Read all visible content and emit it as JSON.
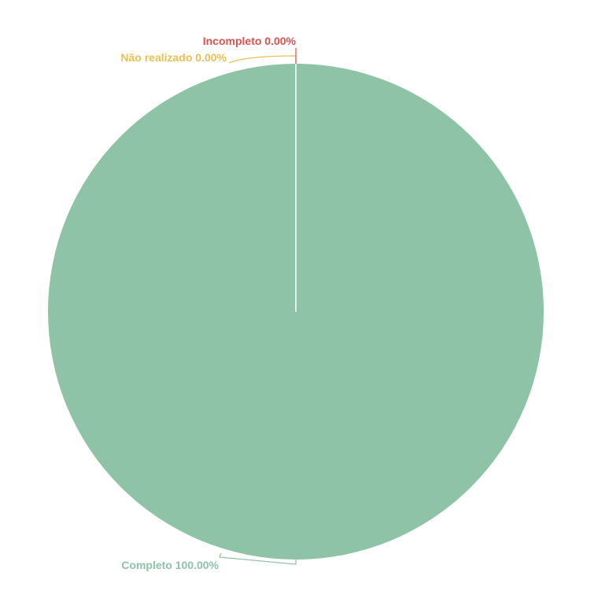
{
  "chart_data": {
    "type": "pie",
    "title": "",
    "slices": [
      {
        "label": "Completo",
        "value": 100.0,
        "display": "Completo 100.00%",
        "color": "#8ec3a7"
      },
      {
        "label": "Não realizado",
        "value": 0.0,
        "display": "Não realizado 0.00%",
        "color": "#e8c14f"
      },
      {
        "label": "Incompleto",
        "value": 0.0,
        "display": "Incompleto 0.00%",
        "color": "#d9534f"
      }
    ]
  }
}
